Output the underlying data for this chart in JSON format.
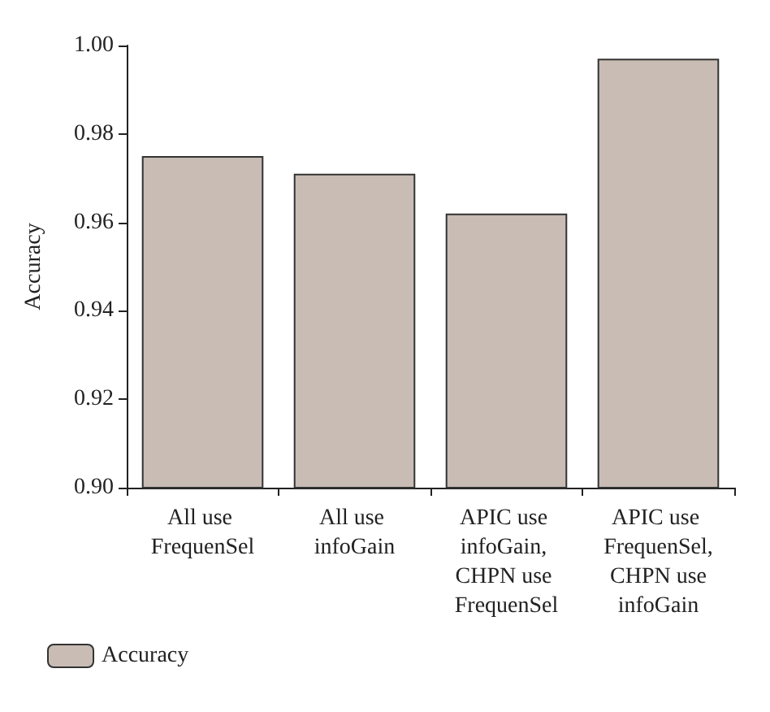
{
  "chart_data": {
    "type": "bar",
    "ylabel": "Accuracy",
    "categories": [
      "All use FrequenSel",
      "All use infoGain",
      "APIC use infoGain, CHPN use FrequenSel",
      "APIC use FrequenSel, CHPN use infoGain"
    ],
    "series": [
      {
        "name": "Accuracy",
        "color": "#c8bcb4",
        "values": [
          0.975,
          0.971,
          0.962,
          0.997
        ]
      }
    ],
    "ylim": [
      0.9,
      1.0
    ],
    "yticks": [
      {
        "value": 0.9,
        "label": "0.90"
      },
      {
        "value": 0.92,
        "label": "0.92"
      },
      {
        "value": 0.94,
        "label": "0.94"
      },
      {
        "value": 0.96,
        "label": "0.96"
      },
      {
        "value": 0.98,
        "label": "0.98"
      },
      {
        "value": 1.0,
        "label": "1.00"
      }
    ],
    "grid": false,
    "legend": "bottom left"
  }
}
